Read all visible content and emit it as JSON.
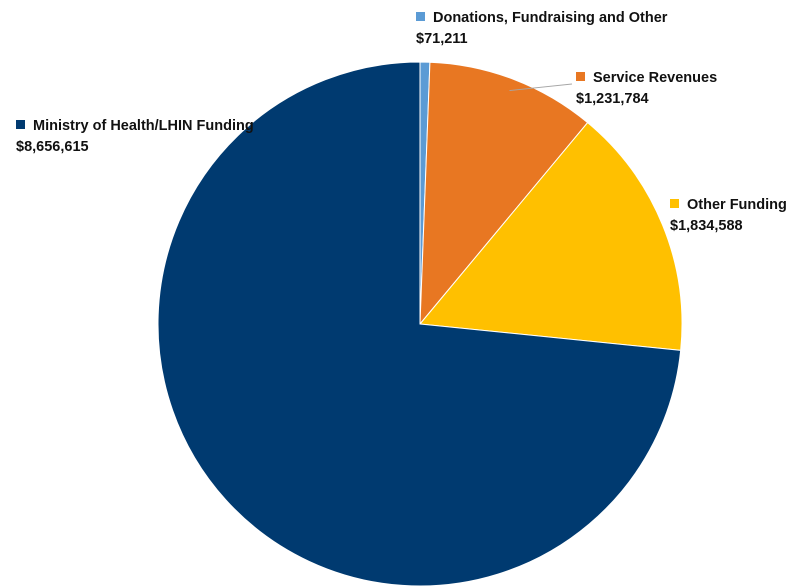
{
  "chart_data": {
    "type": "pie",
    "title": "",
    "slices": [
      {
        "label": "Donations, Fundraising and Other",
        "value": 71211,
        "value_label": "$71,211",
        "color": "#5b9bd5"
      },
      {
        "label": "Service Revenues",
        "value": 1231784,
        "value_label": "$1,231,784",
        "color": "#e87722"
      },
      {
        "label": "Other Funding",
        "value": 1834588,
        "value_label": "$1,834,588",
        "color": "#ffc000"
      },
      {
        "label": "Ministry of Health/LHIN Funding",
        "value": 8656615,
        "value_label": "$8,656,615",
        "color": "#003a70"
      }
    ],
    "start_angle_deg": 0,
    "direction": "clockwise",
    "legend": "none",
    "data_labels": "outside"
  }
}
